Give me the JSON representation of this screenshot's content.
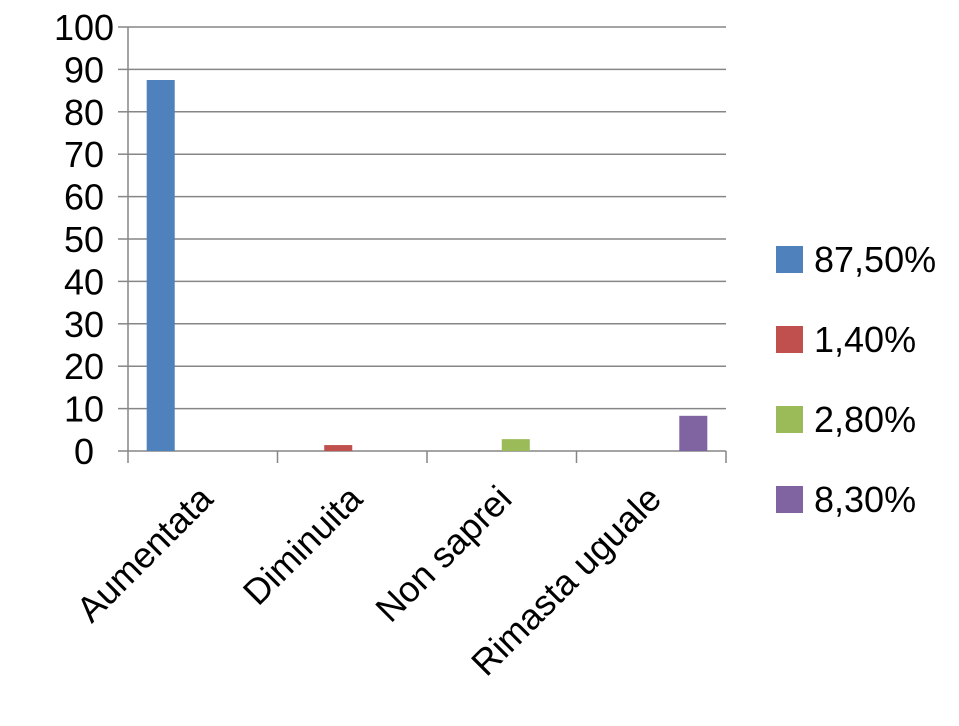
{
  "chart_data": {
    "type": "bar",
    "categories": [
      "Aumentata",
      "Diminuita",
      "Non saprei",
      "Rimasta uguale"
    ],
    "series": [
      {
        "name": "87,50%",
        "values": [
          87.5,
          null,
          null,
          null
        ],
        "color": "#4F81BD"
      },
      {
        "name": "1,40%",
        "values": [
          null,
          1.4,
          null,
          null
        ],
        "color": "#C0504D"
      },
      {
        "name": "2,80%",
        "values": [
          null,
          null,
          2.8,
          null
        ],
        "color": "#9BBB59"
      },
      {
        "name": "8,30%",
        "values": [
          null,
          null,
          null,
          8.3
        ],
        "color": "#8064A2"
      }
    ],
    "y_ticks": [
      "0",
      "10",
      "20",
      "30",
      "40",
      "50",
      "60",
      "70",
      "80",
      "90",
      "100"
    ],
    "ylim": [
      0,
      100
    ],
    "grid": true,
    "legend_position": "right"
  }
}
